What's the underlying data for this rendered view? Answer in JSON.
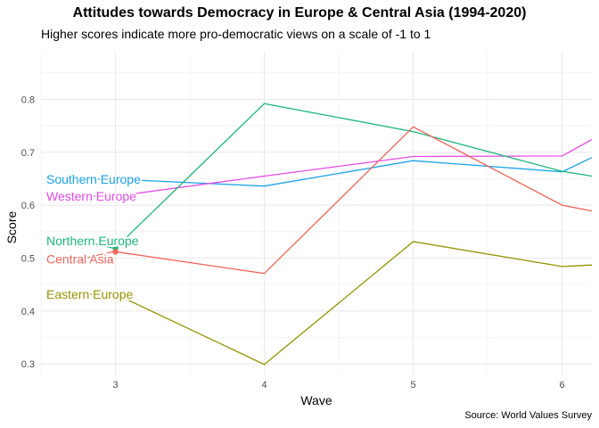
{
  "chart_data": {
    "type": "line",
    "title": "Attitudes towards Democracy in Europe & Central Asia (1994-2020)",
    "subtitle": "Higher scores indicate more pro-democratic views on a scale of -1 to 1",
    "caption": "Source: World Values Survey",
    "xlabel": "Wave",
    "ylabel": "Score",
    "x_ticks": [
      3,
      4,
      5,
      6
    ],
    "y_ticks": [
      0.3,
      0.4,
      0.5,
      0.6,
      0.7,
      0.8
    ],
    "xlim": [
      2.5,
      6.2
    ],
    "ylim": [
      0.28,
      0.89
    ],
    "grid": true,
    "legend": "direct labels at wave 3",
    "x": [
      3,
      4,
      5,
      6,
      6.2
    ],
    "series": [
      {
        "name": "Southern Europe",
        "color": "#1aa2e8",
        "values": [
          0.649,
          0.636,
          0.684,
          0.663,
          0.69
        ]
      },
      {
        "name": "Western Europe",
        "color": "#e649e8",
        "values": [
          0.617,
          0.655,
          0.692,
          0.693,
          0.724
        ]
      },
      {
        "name": "Northern Europe",
        "color": "#1db87a",
        "values": [
          0.519,
          0.792,
          0.739,
          0.664,
          0.655
        ]
      },
      {
        "name": "Central Asia",
        "color": "#f0645b",
        "values": [
          0.512,
          0.471,
          0.748,
          0.6,
          0.589
        ]
      },
      {
        "name": "Eastern Europe",
        "color": "#939400",
        "values": [
          0.432,
          0.299,
          0.531,
          0.484,
          0.487
        ]
      }
    ]
  }
}
